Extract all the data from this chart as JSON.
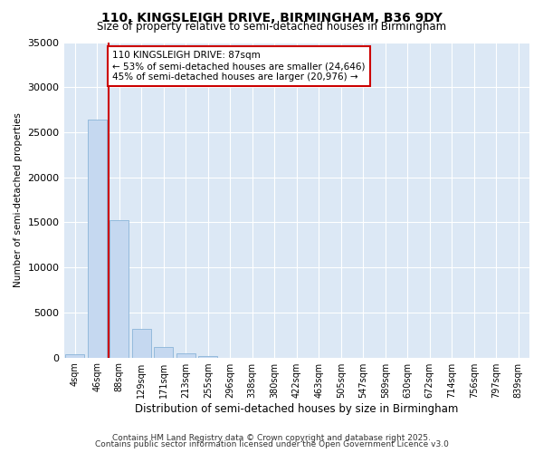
{
  "title1": "110, KINGSLEIGH DRIVE, BIRMINGHAM, B36 9DY",
  "title2": "Size of property relative to semi-detached houses in Birmingham",
  "xlabel": "Distribution of semi-detached houses by size in Birmingham",
  "ylabel": "Number of semi-detached properties",
  "categories": [
    "4sqm",
    "46sqm",
    "88sqm",
    "129sqm",
    "171sqm",
    "213sqm",
    "255sqm",
    "296sqm",
    "338sqm",
    "380sqm",
    "422sqm",
    "463sqm",
    "505sqm",
    "547sqm",
    "589sqm",
    "630sqm",
    "672sqm",
    "714sqm",
    "756sqm",
    "797sqm",
    "839sqm"
  ],
  "values": [
    400,
    26400,
    15200,
    3200,
    1200,
    420,
    180,
    0,
    0,
    0,
    0,
    0,
    0,
    0,
    0,
    0,
    0,
    0,
    0,
    0,
    0
  ],
  "bar_color": "#c5d8f0",
  "bar_edge_color": "#8ab4d8",
  "red_line_index": 2,
  "red_line_color": "#cc0000",
  "annotation_text": "110 KINGSLEIGH DRIVE: 87sqm\n← 53% of semi-detached houses are smaller (24,646)\n45% of semi-detached houses are larger (20,976) →",
  "annotation_box_color": "#ffffff",
  "annotation_box_edge": "#cc0000",
  "ylim": [
    0,
    35000
  ],
  "yticks": [
    0,
    5000,
    10000,
    15000,
    20000,
    25000,
    30000,
    35000
  ],
  "footer1": "Contains HM Land Registry data © Crown copyright and database right 2025.",
  "footer2": "Contains public sector information licensed under the Open Government Licence v3.0",
  "plot_bg_color": "#dce8f5",
  "fig_bg_color": "#ffffff",
  "grid_color": "#ffffff"
}
